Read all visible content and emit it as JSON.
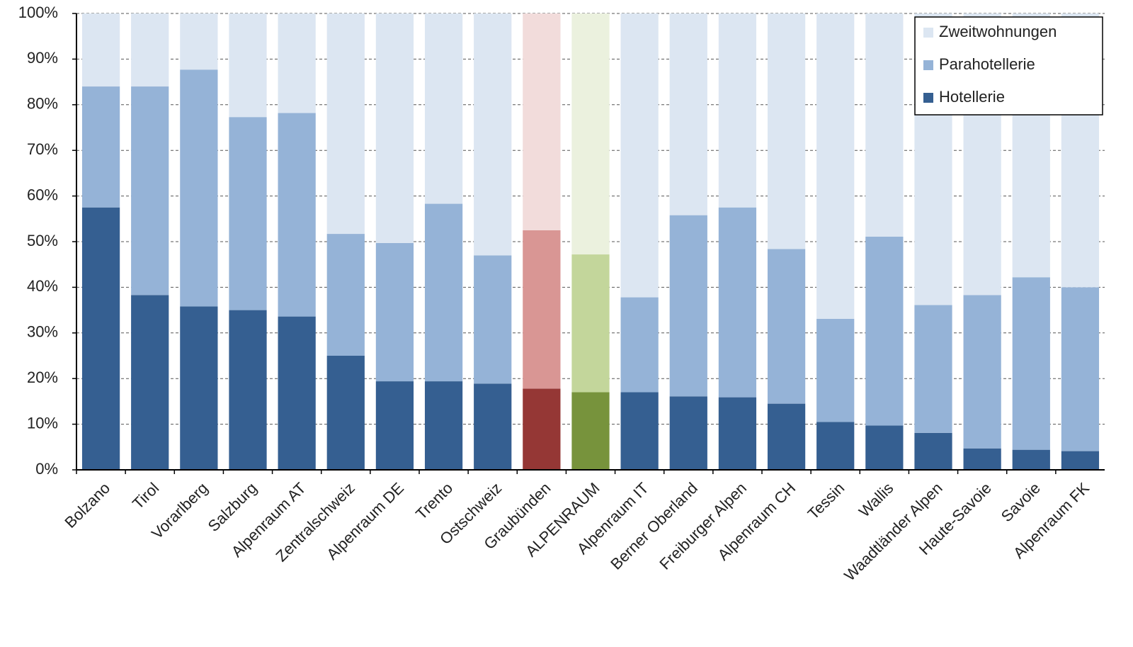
{
  "chart_data": {
    "type": "stacked_bar_100",
    "categories": [
      "Bolzano",
      "Tirol",
      "Vorarlberg",
      "Salzburg",
      "Alpenraum AT",
      "Zentralschweiz",
      "Alpenraum DE",
      "Trento",
      "Ostschweiz",
      "Graubünden",
      "ALPENRAUM",
      "Alpenraum IT",
      "Berner Oberland",
      "Freiburger Alpen",
      "Alpenraum CH",
      "Tessin",
      "Wallis",
      "Waadtländer Alpen",
      "Haute-Savoie",
      "Savoie",
      "Alpenraum FK"
    ],
    "series": [
      {
        "name": "Hotellerie",
        "color": "#355f91",
        "point_colors": [
          null,
          null,
          null,
          null,
          null,
          null,
          null,
          null,
          null,
          "#953735",
          "#77933c",
          null,
          null,
          null,
          null,
          null,
          null,
          null,
          null,
          null,
          null
        ],
        "values": [
          57.5,
          38.3,
          35.8,
          35,
          33.6,
          25,
          19.4,
          19.4,
          18.9,
          17.8,
          17,
          17,
          16.1,
          15.9,
          14.5,
          10.5,
          9.7,
          8.1,
          4.7,
          4.4,
          4.1
        ]
      },
      {
        "name": "Parahotellerie",
        "color": "#95b3d7",
        "point_colors": [
          null,
          null,
          null,
          null,
          null,
          null,
          null,
          null,
          null,
          "#d99694",
          "#c3d69b",
          null,
          null,
          null,
          null,
          null,
          null,
          null,
          null,
          null,
          null
        ],
        "values": [
          26.5,
          45.7,
          51.9,
          42.3,
          44.6,
          26.7,
          30.3,
          38.9,
          28.1,
          34.7,
          30.2,
          20.8,
          39.7,
          41.6,
          33.9,
          22.6,
          41.4,
          28,
          33.6,
          37.8,
          35.9
        ]
      },
      {
        "name": "Zweitwohnungen",
        "color": "#dce6f2",
        "point_colors": [
          null,
          null,
          null,
          null,
          null,
          null,
          null,
          null,
          null,
          "#f2dcdb",
          "#ebf1de",
          null,
          null,
          null,
          null,
          null,
          null,
          null,
          null,
          null,
          null
        ],
        "values": [
          16,
          16,
          12.3,
          22.7,
          21.8,
          48.3,
          50.3,
          41.7,
          53,
          47.5,
          52.8,
          62.2,
          44.2,
          42.5,
          51.6,
          66.9,
          48.9,
          63.9,
          61.7,
          57.8,
          60
        ]
      }
    ],
    "ylim": [
      0,
      100
    ],
    "yticks": [
      {
        "value": 0,
        "label": "0%"
      },
      {
        "value": 10,
        "label": "10%"
      },
      {
        "value": 20,
        "label": "20%"
      },
      {
        "value": 30,
        "label": "30%"
      },
      {
        "value": 40,
        "label": "40%"
      },
      {
        "value": 50,
        "label": "50%"
      },
      {
        "value": 60,
        "label": "60%"
      },
      {
        "value": 70,
        "label": "70%"
      },
      {
        "value": 80,
        "label": "80%"
      },
      {
        "value": 90,
        "label": "90%"
      },
      {
        "value": 100,
        "label": "100%"
      }
    ],
    "grid": true,
    "legend": "top-right"
  }
}
